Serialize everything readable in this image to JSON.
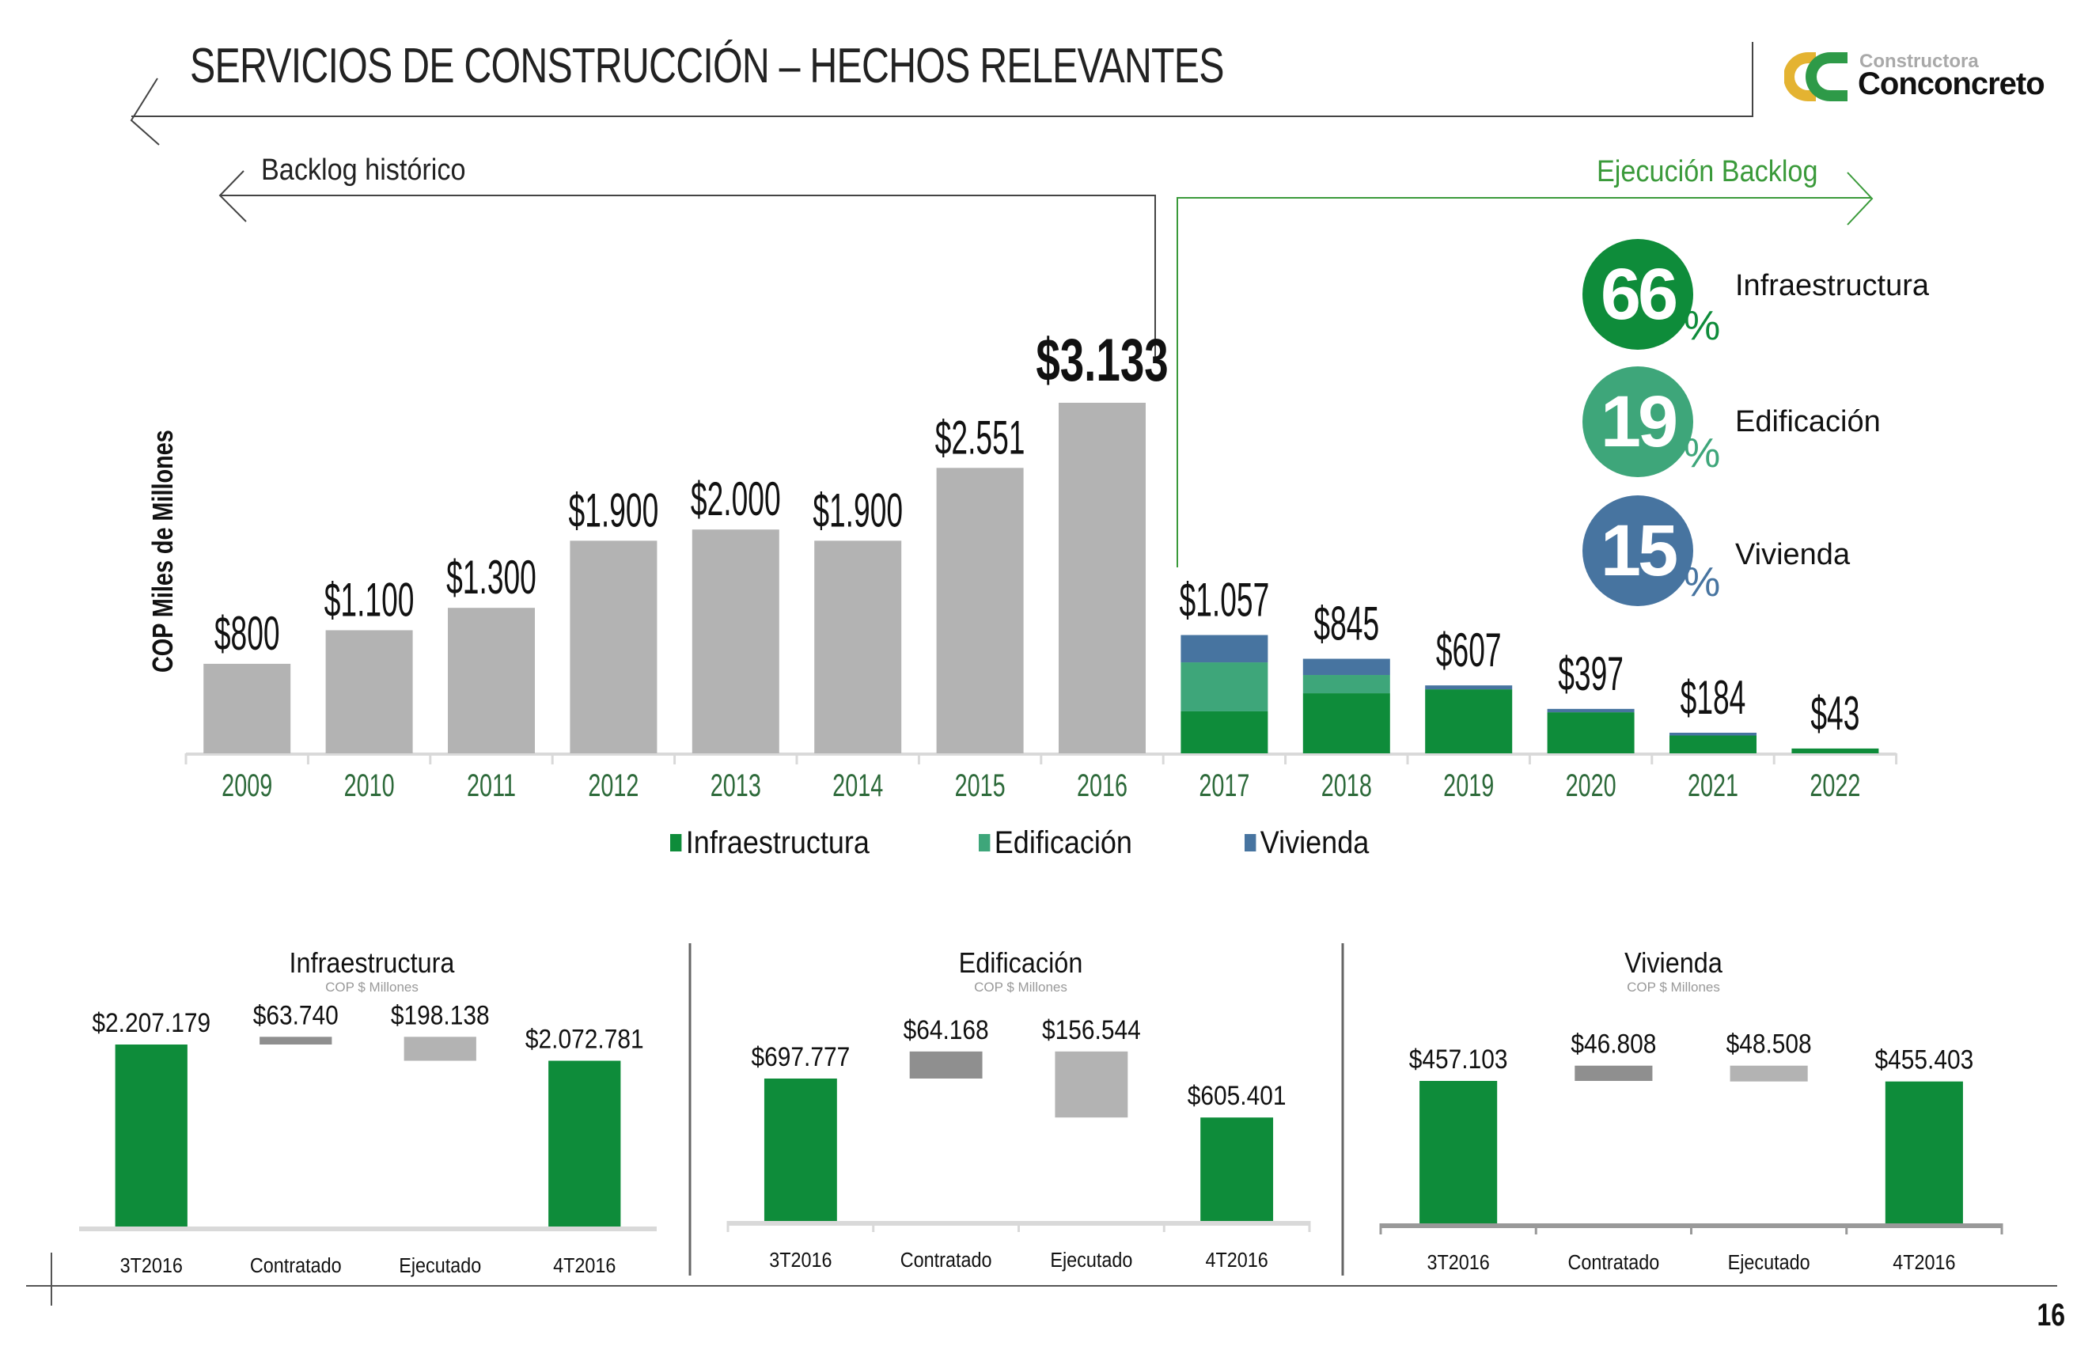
{
  "header": {
    "title": "SERVICIOS DE CONSTRUCCIÓN – HECHOS RELEVANTES",
    "logo_top": "Constructora",
    "logo_main": "Conconcreto"
  },
  "sections": {
    "backlog_label": "Backlog histórico",
    "execution_label": "Ejecución Backlog"
  },
  "colors": {
    "infraestructura": "#0e8c3a",
    "edificacion": "#3ea67a",
    "vivienda": "#4774a0",
    "historic": "#b3b3b3",
    "contratado": "#8f8f8f",
    "ejecutado": "#b3b3b3",
    "year_label": "#2d6a3a",
    "exec_line": "#3a9a3a"
  },
  "mix": [
    {
      "value": "66",
      "sign": "%",
      "label": "Infraestructura",
      "color": "#0e8c3a"
    },
    {
      "value": "19",
      "sign": "%",
      "label": "Edificación",
      "color": "#3ea67a"
    },
    {
      "value": "15",
      "sign": "%",
      "label": "Vivienda",
      "color": "#4774a0"
    }
  ],
  "page_number": "16",
  "chart_data": [
    {
      "type": "bar",
      "title": "",
      "ylabel": "COP Miles de Millones",
      "xlabel": "",
      "ylim": [
        0,
        3133
      ],
      "categories": [
        "2009",
        "2010",
        "2011",
        "2012",
        "2013",
        "2014",
        "2015",
        "2016",
        "2017",
        "2018",
        "2019",
        "2020",
        "2021",
        "2022"
      ],
      "historic": {
        "categories": [
          "2009",
          "2010",
          "2011",
          "2012",
          "2013",
          "2014",
          "2015",
          "2016"
        ],
        "values": [
          800,
          1100,
          1300,
          1900,
          2000,
          1900,
          2551,
          3133
        ],
        "labels": [
          "$800",
          "$1.100",
          "$1.300",
          "$1.900",
          "$2.000",
          "$1.900",
          "$2.551",
          "$3.133"
        ]
      },
      "execution": {
        "categories": [
          "2017",
          "2018",
          "2019",
          "2020",
          "2021",
          "2022"
        ],
        "totals": [
          1057,
          845,
          607,
          397,
          184,
          43
        ],
        "labels": [
          "$1.057",
          "$845",
          "$607",
          "$397",
          "$184",
          "$43"
        ],
        "series": [
          {
            "name": "Infraestructura",
            "values": [
              375,
              537,
              572,
              367,
              159,
              43
            ]
          },
          {
            "name": "Edificación",
            "values": [
              438,
              163,
              0,
              0,
              0,
              0
            ]
          },
          {
            "name": "Vivienda",
            "values": [
              244,
              145,
              35,
              30,
              25,
              0
            ]
          }
        ]
      },
      "legend": [
        "Infraestructura",
        "Edificación",
        "Vivienda"
      ],
      "legend_position": "bottom",
      "grid": false
    },
    {
      "type": "bar",
      "subtype": "waterfall",
      "title": "Infraestructura",
      "subtitle": "COP $ Millones",
      "categories": [
        "3T2016",
        "Contratado",
        "Ejecutado",
        "4T2016"
      ],
      "values": [
        2207179,
        63740,
        -198138,
        2072781
      ],
      "labels": [
        "$2.207.179",
        "$63.740",
        "$198.138",
        "$2.072.781"
      ],
      "ylim": [
        700000,
        2300000
      ]
    },
    {
      "type": "bar",
      "subtype": "waterfall",
      "title": "Edificación",
      "subtitle": "COP $ Millones",
      "categories": [
        "3T2016",
        "Contratado",
        "Ejecutado",
        "4T2016"
      ],
      "values": [
        697777,
        64168,
        -156544,
        605401
      ],
      "labels": [
        "$697.777",
        "$64.168",
        "$156.544",
        "$605.401"
      ],
      "ylim": [
        360000,
        800000
      ]
    },
    {
      "type": "bar",
      "subtype": "waterfall",
      "title": "Vivienda",
      "subtitle": "COP $ Millones",
      "categories": [
        "3T2016",
        "Contratado",
        "Ejecutado",
        "4T2016"
      ],
      "values": [
        457103,
        46808,
        -48508,
        455403
      ],
      "labels": [
        "$457.103",
        "$46.808",
        "$48.508",
        "$455.403"
      ],
      "ylim": [
        20000,
        510000
      ]
    }
  ]
}
